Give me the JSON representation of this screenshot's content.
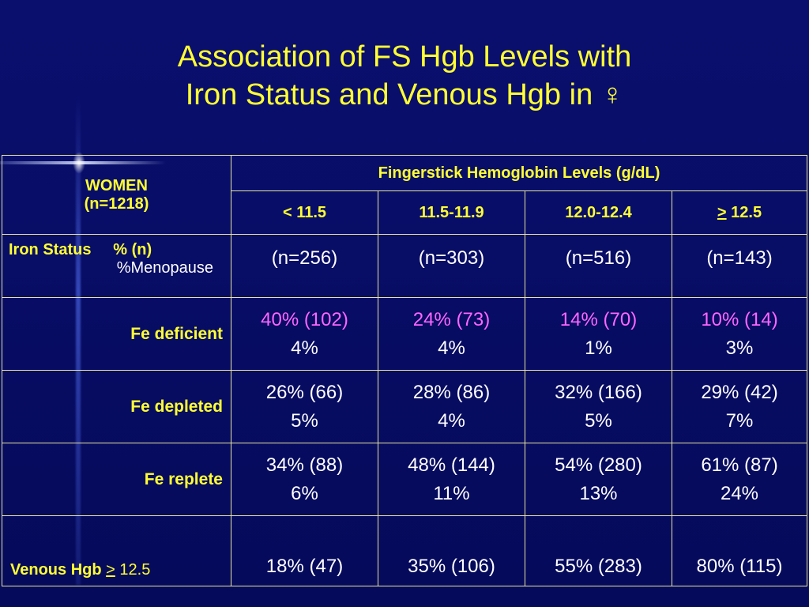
{
  "title": {
    "line1": "Association of FS Hgb Levels with",
    "line2": "Iron Status and Venous Hgb in ♀"
  },
  "table": {
    "corner_line1": "WOMEN",
    "corner_line2": "(n=1218)",
    "group_header": "Fingerstick Hemoglobin Levels (g/dL)",
    "columns": [
      {
        "prefix": "",
        "text": "< 11.5"
      },
      {
        "prefix": "",
        "text": "11.5-11.9"
      },
      {
        "prefix": "",
        "text": "12.0-12.4"
      },
      {
        "prefix": ">",
        "text": " 12.5"
      }
    ],
    "status_row": {
      "label_line1": "Iron Status     % (n)",
      "label_line2": "%Menopause",
      "counts": [
        "(n=256)",
        "(n=303)",
        "(n=516)",
        "(n=143)"
      ]
    },
    "rows": [
      {
        "label": "Fe deficient",
        "cells": [
          [
            "40% (102)",
            "4%"
          ],
          [
            "24% (73)",
            "4%"
          ],
          [
            "14% (70)",
            "1%"
          ],
          [
            "10% (14)",
            "3%"
          ]
        ]
      },
      {
        "label": "Fe depleted",
        "cells": [
          [
            "26% (66)",
            "5%"
          ],
          [
            "28% (86)",
            "4%"
          ],
          [
            "32% (166)",
            "5%"
          ],
          [
            "29% (42)",
            "7%"
          ]
        ]
      },
      {
        "label": "Fe replete",
        "cells": [
          [
            "34% (88)",
            "6%"
          ],
          [
            "48% (144)",
            "11%"
          ],
          [
            "54% (280)",
            "13%"
          ],
          [
            "61% (87)",
            "24%"
          ]
        ]
      }
    ],
    "venous": {
      "label": "Venous Hgb",
      "label_op": ">",
      "label_value": " 12.5",
      "cells": [
        "18% (47)",
        "35% (106)",
        "55% (283)",
        "80% (115)"
      ]
    }
  },
  "colors": {
    "background": "#0a0f6e",
    "title": "#ffff33",
    "header_text": "#ffff33",
    "body_text": "#ffffff",
    "highlight": "#ff66ff",
    "border": "#e9e6a0"
  }
}
